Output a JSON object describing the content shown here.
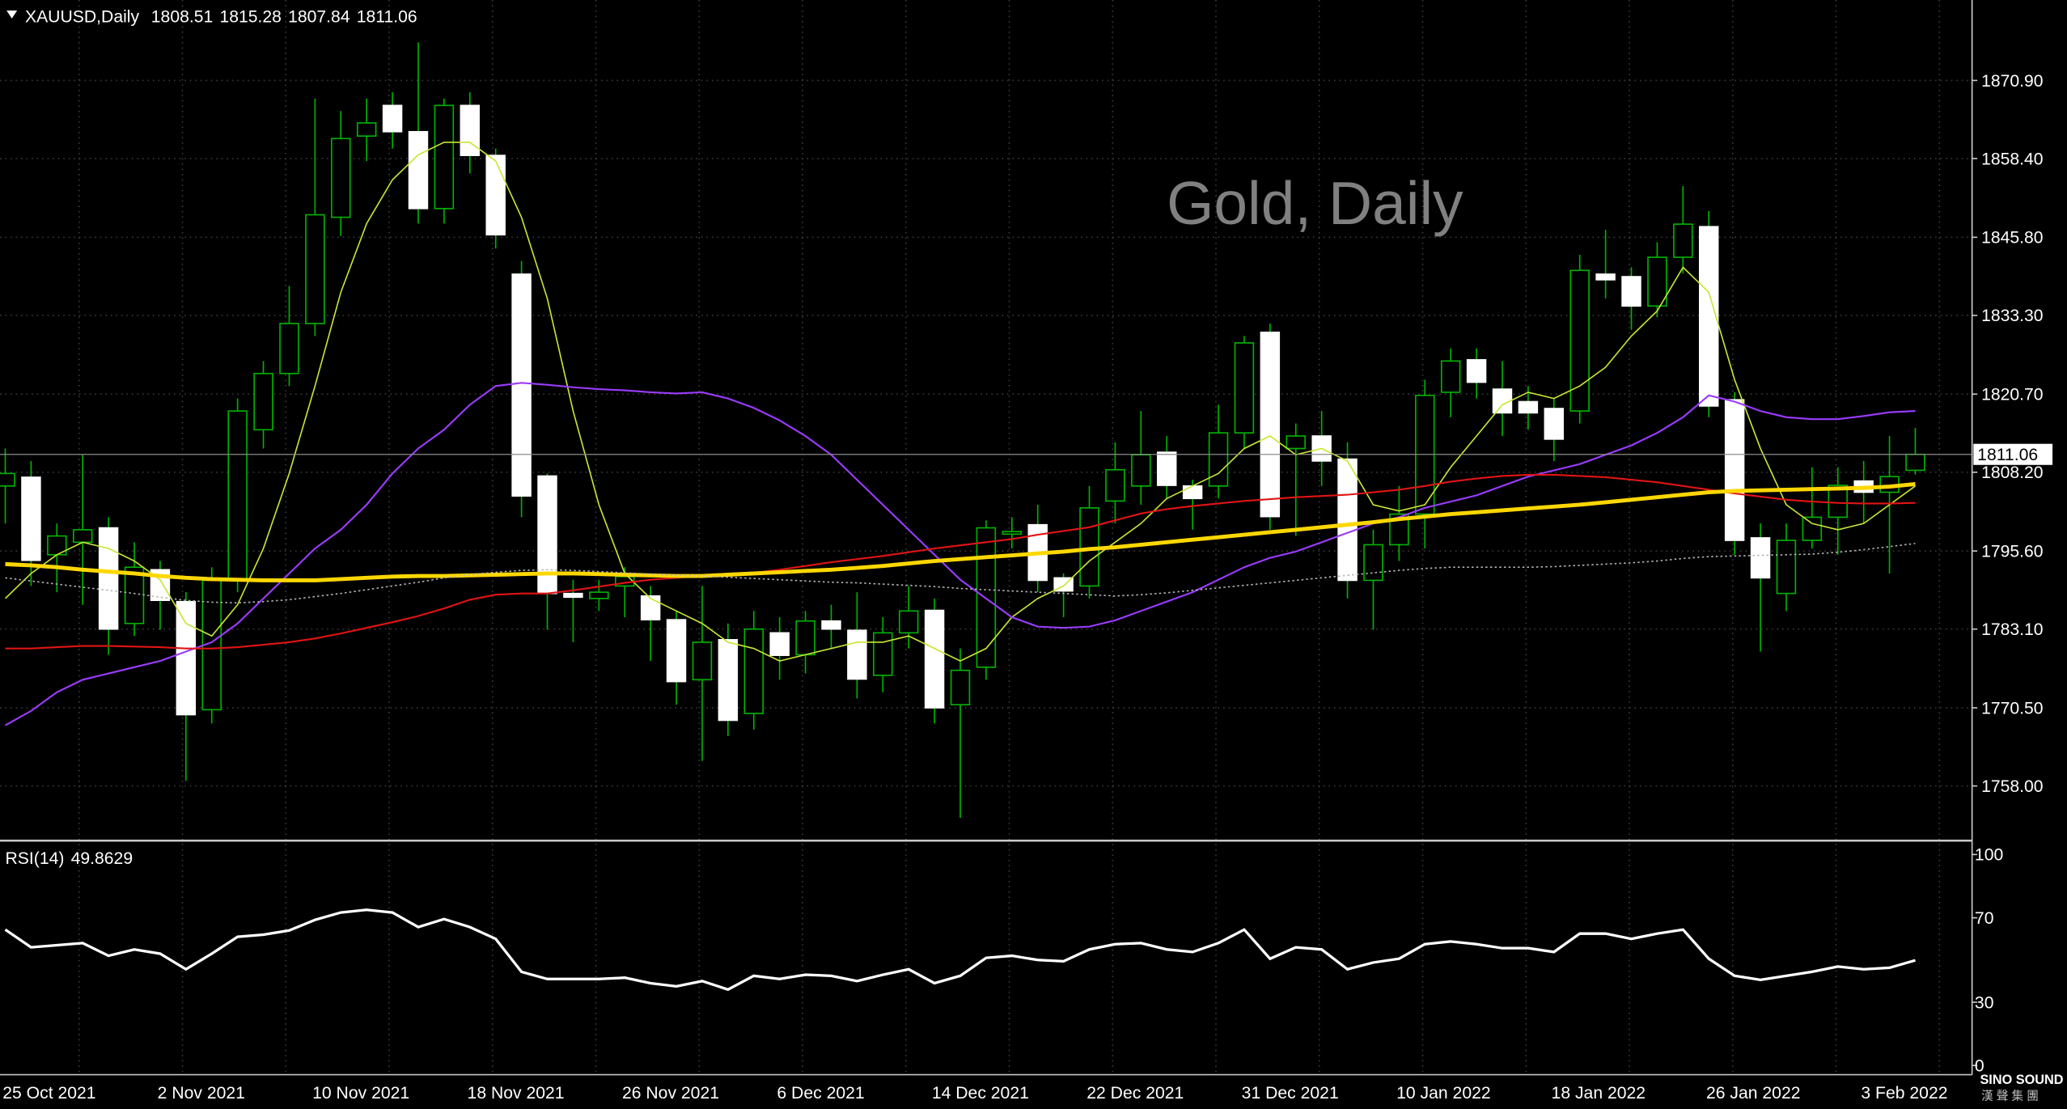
{
  "chart_data": [
    {
      "type": "candlestick",
      "title": "Gold, Daily",
      "symbol": "XAUUSD,Daily",
      "categories": [
        "25 Oct 2021",
        null,
        null,
        null,
        null,
        null,
        "2 Nov 2021",
        null,
        null,
        null,
        null,
        null,
        "10 Nov 2021",
        null,
        null,
        null,
        null,
        null,
        "18 Nov 2021",
        null,
        null,
        null,
        null,
        null,
        "26 Nov 2021",
        null,
        null,
        null,
        null,
        null,
        "6 Dec 2021",
        null,
        null,
        null,
        null,
        null,
        "14 Dec 2021",
        null,
        null,
        null,
        null,
        null,
        "22 Dec 2021",
        null,
        null,
        null,
        null,
        null,
        "31 Dec 2021",
        null,
        null,
        null,
        null,
        null,
        "10 Jan 2022",
        null,
        null,
        null,
        null,
        null,
        "18 Jan 2022",
        null,
        null,
        null,
        null,
        null,
        "26 Jan 2022",
        null,
        null,
        null,
        null,
        null,
        "3 Feb 2022",
        null,
        null
      ],
      "open": [
        1806,
        1807.4,
        1795,
        1797,
        1799.3,
        1784,
        1792.6,
        1787.5,
        1770.2,
        1791,
        1815,
        1824,
        1832,
        1849,
        1862,
        1866.9,
        1862.7,
        1850.4,
        1866.9,
        1858.9,
        1839.9,
        1807.6,
        1788.8,
        1788,
        1790,
        1788.4,
        1784.6,
        1775,
        1781.4,
        1769.6,
        1782.5,
        1779,
        1784.4,
        1782.9,
        1775.7,
        1782.5,
        1786.1,
        1771,
        1777,
        1798.3,
        1799.8,
        1791.3,
        1790,
        1803.6,
        1806,
        1811.4,
        1806,
        1806,
        1814.5,
        1830.6,
        1812,
        1814,
        1810.3,
        1790.9,
        1796.6,
        1801.5,
        1821,
        1826.2,
        1821.5,
        1819.5,
        1818.4,
        1818,
        1839.9,
        1839.5,
        1834.8,
        1842.6,
        1847.5,
        1819.8,
        1797.7,
        1788.8,
        1797.3,
        1801,
        1806.8,
        1805,
        1808.51
      ],
      "high": [
        1812,
        1810,
        1800,
        1811,
        1801,
        1797,
        1794,
        1789,
        1793,
        1820,
        1826,
        1838,
        1868,
        1866,
        1868,
        1869,
        1877,
        1868,
        1869,
        1860,
        1842,
        1808,
        1791,
        1791,
        1793,
        1790,
        1786,
        1790,
        1784,
        1786,
        1785,
        1786,
        1787,
        1789,
        1785,
        1790,
        1788,
        1780,
        1800.5,
        1801,
        1803,
        1792,
        1806,
        1813,
        1818,
        1814,
        1807,
        1819,
        1830,
        1832,
        1816,
        1818,
        1813,
        1799,
        1806,
        1823,
        1828,
        1828,
        1826,
        1822,
        1820,
        1843,
        1847,
        1841,
        1845,
        1854,
        1850,
        1821,
        1800,
        1800,
        1809,
        1809,
        1810,
        1814,
        1815.28
      ],
      "low": [
        1800,
        1790,
        1789,
        1787,
        1779,
        1782,
        1783,
        1758.8,
        1768,
        1789,
        1812,
        1822,
        1830,
        1846,
        1858,
        1860,
        1848,
        1848,
        1856,
        1844,
        1801,
        1783,
        1781,
        1786,
        1785,
        1778,
        1771,
        1762,
        1766,
        1767,
        1775,
        1776,
        1780,
        1772,
        1773,
        1780,
        1768,
        1752.9,
        1775,
        1796,
        1789,
        1785,
        1788,
        1800,
        1803,
        1804,
        1799,
        1804,
        1812,
        1799,
        1798,
        1806,
        1788,
        1783,
        1794,
        1796,
        1817,
        1820,
        1814,
        1815,
        1810,
        1816,
        1836,
        1831,
        1833,
        1840,
        1817,
        1795,
        1779.5,
        1786,
        1796,
        1795,
        1800,
        1792,
        1807.84
      ],
      "close": [
        1808,
        1794.1,
        1798,
        1799,
        1783.1,
        1793,
        1787.7,
        1769.4,
        1790.9,
        1818,
        1824,
        1832,
        1849.4,
        1861.6,
        1864.1,
        1862.7,
        1850.4,
        1866.9,
        1858.9,
        1846.2,
        1804.4,
        1788.8,
        1788.2,
        1789,
        1791.5,
        1784.6,
        1774.7,
        1781,
        1768.5,
        1783.1,
        1778.9,
        1784.4,
        1783.1,
        1775.1,
        1782.5,
        1786,
        1770.5,
        1776.5,
        1799.3,
        1798.7,
        1790.9,
        1789.2,
        1802.5,
        1808.6,
        1811,
        1806.1,
        1804,
        1814.5,
        1828.9,
        1801.1,
        1814,
        1810,
        1790.9,
        1796.6,
        1801.5,
        1820.5,
        1826,
        1822.6,
        1817.7,
        1817.7,
        1813.5,
        1840.5,
        1839,
        1834.8,
        1842.6,
        1847.9,
        1818.8,
        1797.3,
        1791.3,
        1797.3,
        1801,
        1806.1,
        1805,
        1807.5,
        1811.06
      ],
      "colors": {
        "up": "#00b400",
        "down": "#ffffff",
        "wick": "#00b400",
        "price_line": "#8c8c8c"
      },
      "lines": [
        {
          "color": "#c8e632",
          "width": 1,
          "values": [
            1788,
            1792,
            1795,
            1797,
            1796,
            1794,
            1791,
            1784,
            1782,
            1787,
            1796,
            1808,
            1822,
            1837,
            1848,
            1855,
            1859,
            1861,
            1861,
            1858,
            1849,
            1836,
            1818,
            1803,
            1792,
            1788,
            1786,
            1784,
            1781,
            1780,
            1778,
            1779,
            1780,
            1781,
            1781,
            1782,
            1780,
            1778,
            1780,
            1785,
            1788,
            1790,
            1794,
            1797,
            1800,
            1804,
            1806,
            1808,
            1812,
            1814,
            1811,
            1812,
            1810,
            1803,
            1802,
            1803,
            1809,
            1814,
            1819,
            1821,
            1820,
            1822,
            1825,
            1830,
            1834,
            1841,
            1837,
            1823,
            1812,
            1803,
            1800,
            1799,
            1800,
            1803,
            1806
          ]
        },
        {
          "color": "#9b3cff",
          "width": 1.3,
          "values": [
            1767.7,
            1770,
            1773,
            1775,
            1776,
            1777,
            1778,
            1779.5,
            1781,
            1784,
            1788,
            1792,
            1796,
            1799,
            1803,
            1808,
            1812,
            1815,
            1819,
            1822,
            1822.5,
            1822.2,
            1821.8,
            1821.5,
            1821.3,
            1821,
            1820.8,
            1821,
            1820,
            1818.5,
            1816.5,
            1814,
            1811,
            1807,
            1803,
            1799,
            1795,
            1791,
            1788,
            1785,
            1783.5,
            1783.3,
            1783.5,
            1784.5,
            1786,
            1787.5,
            1789,
            1791,
            1793,
            1794.5,
            1795.5,
            1797,
            1798.5,
            1800,
            1801,
            1802.5,
            1803.5,
            1804.5,
            1806,
            1807.5,
            1808.5,
            1809.5,
            1811,
            1812.5,
            1814.5,
            1817,
            1820.5,
            1819.5,
            1818,
            1817,
            1816.7,
            1816.7,
            1817.2,
            1817.8,
            1818
          ]
        },
        {
          "color": "#e01414",
          "width": 1.3,
          "values": [
            1780,
            1780,
            1780.2,
            1780.4,
            1780.4,
            1780.3,
            1780.2,
            1780,
            1780,
            1780.2,
            1780.6,
            1781,
            1781.6,
            1782.4,
            1783.3,
            1784.2,
            1785.2,
            1786.4,
            1787.8,
            1788.6,
            1788.8,
            1788.8,
            1789.3,
            1789.9,
            1790.5,
            1791,
            1791.3,
            1791.6,
            1791.8,
            1792.1,
            1792.6,
            1793.2,
            1793.8,
            1794.3,
            1794.8,
            1795.4,
            1796,
            1796.5,
            1797,
            1797.5,
            1798.2,
            1798.8,
            1799.4,
            1800.5,
            1801.6,
            1802.3,
            1802.8,
            1803.2,
            1803.6,
            1803.9,
            1804.2,
            1804.4,
            1804.6,
            1805,
            1805.4,
            1806,
            1806.7,
            1807.2,
            1807.6,
            1807.8,
            1807.8,
            1807.6,
            1807.4,
            1807,
            1806.6,
            1806,
            1805.4,
            1804.8,
            1804.3,
            1803.8,
            1803.5,
            1803.3,
            1803.2,
            1803.2,
            1803.3
          ]
        },
        {
          "color": "#ffd700",
          "width": 3,
          "values": [
            1793.5,
            1793.3,
            1793,
            1792.6,
            1792.3,
            1792,
            1791.6,
            1791.3,
            1791.1,
            1791,
            1790.9,
            1790.9,
            1790.9,
            1791.1,
            1791.3,
            1791.5,
            1791.6,
            1791.6,
            1791.7,
            1791.8,
            1791.9,
            1792,
            1792,
            1791.9,
            1791.8,
            1791.7,
            1791.6,
            1791.6,
            1791.8,
            1792,
            1792.2,
            1792.4,
            1792.6,
            1792.9,
            1793.2,
            1793.6,
            1794,
            1794.3,
            1794.6,
            1794.9,
            1795.2,
            1795.5,
            1795.9,
            1796.2,
            1796.6,
            1797,
            1797.4,
            1797.8,
            1798.2,
            1798.6,
            1799,
            1799.4,
            1799.8,
            1800.2,
            1800.7,
            1801.1,
            1801.5,
            1801.8,
            1802.1,
            1802.4,
            1802.7,
            1803,
            1803.4,
            1803.8,
            1804.2,
            1804.6,
            1805,
            1805.2,
            1805.3,
            1805.4,
            1805.5,
            1805.6,
            1805.7,
            1805.9,
            1806.3
          ]
        },
        {
          "color": "#b4b4b4",
          "width": 1,
          "style": "dotted",
          "values": [
            1791.3,
            1790.8,
            1790.3,
            1789.8,
            1789.3,
            1788.8,
            1788.2,
            1787.7,
            1787.4,
            1787.3,
            1787.5,
            1787.8,
            1788.3,
            1788.8,
            1789.4,
            1790,
            1790.6,
            1791.3,
            1791.8,
            1792.2,
            1792.5,
            1792.6,
            1792.5,
            1792.3,
            1792.1,
            1791.9,
            1791.7,
            1791.6,
            1791.4,
            1791.2,
            1791,
            1790.8,
            1790.6,
            1790.5,
            1790.3,
            1790.1,
            1789.9,
            1789.6,
            1789.4,
            1789.2,
            1789,
            1788.8,
            1788.6,
            1788.4,
            1788.6,
            1788.9,
            1789.3,
            1789.7,
            1790.1,
            1790.5,
            1790.9,
            1791.3,
            1791.7,
            1792.1,
            1792.5,
            1792.8,
            1793,
            1793,
            1793,
            1793,
            1793.1,
            1793.3,
            1793.5,
            1793.7,
            1794,
            1794.4,
            1794.7,
            1794.8,
            1794.9,
            1795,
            1795.1,
            1795.4,
            1795.8,
            1796.3,
            1796.8
          ]
        }
      ],
      "ylim": [
        1749.35,
        1883.35
      ],
      "yticks": [
        {
          "value": 1870.9,
          "label": "1870.90"
        },
        {
          "value": 1858.4,
          "label": "1858.40"
        },
        {
          "value": 1845.8,
          "label": "1845.80"
        },
        {
          "value": 1833.3,
          "label": "1833.30"
        },
        {
          "value": 1820.7,
          "label": "1820.70"
        },
        {
          "value": 1808.2,
          "label": "1808.20"
        },
        {
          "value": 1795.6,
          "label": "1795.60"
        },
        {
          "value": 1783.1,
          "label": "1783.10"
        },
        {
          "value": 1770.5,
          "label": "1770.50"
        },
        {
          "value": 1758,
          "label": "1758.00"
        }
      ],
      "grid": true
    },
    {
      "type": "line",
      "title": "RSI(14)",
      "color": "#ffffff",
      "values": [
        64.4,
        56,
        57,
        58,
        52,
        55,
        53,
        45.6,
        53,
        61,
        62,
        64,
        69,
        72.5,
        73.8,
        72.5,
        65.6,
        69.4,
        65.6,
        60,
        44.4,
        41,
        41,
        41,
        41.6,
        39,
        37.5,
        40,
        36,
        42.5,
        41,
        43,
        42.5,
        40,
        43,
        45.6,
        39,
        42.5,
        51,
        52,
        50,
        49.4,
        55,
        57.5,
        58,
        55,
        53.8,
        58,
        64.4,
        50.6,
        56,
        55,
        45.6,
        48.8,
        50.6,
        57.5,
        58.8,
        57.5,
        55.6,
        55.6,
        53.8,
        62.5,
        62.5,
        60,
        62.5,
        64.4,
        50.6,
        42.5,
        40.6,
        42.5,
        44.4,
        46.9,
        45.6,
        46.3,
        49.8629
      ],
      "ylim": [
        0,
        100
      ],
      "yticks": [
        0,
        30,
        70,
        100
      ]
    }
  ],
  "logo": {
    "name": "SINO SOUND",
    "subtitle": "漢 聲 集 團"
  }
}
